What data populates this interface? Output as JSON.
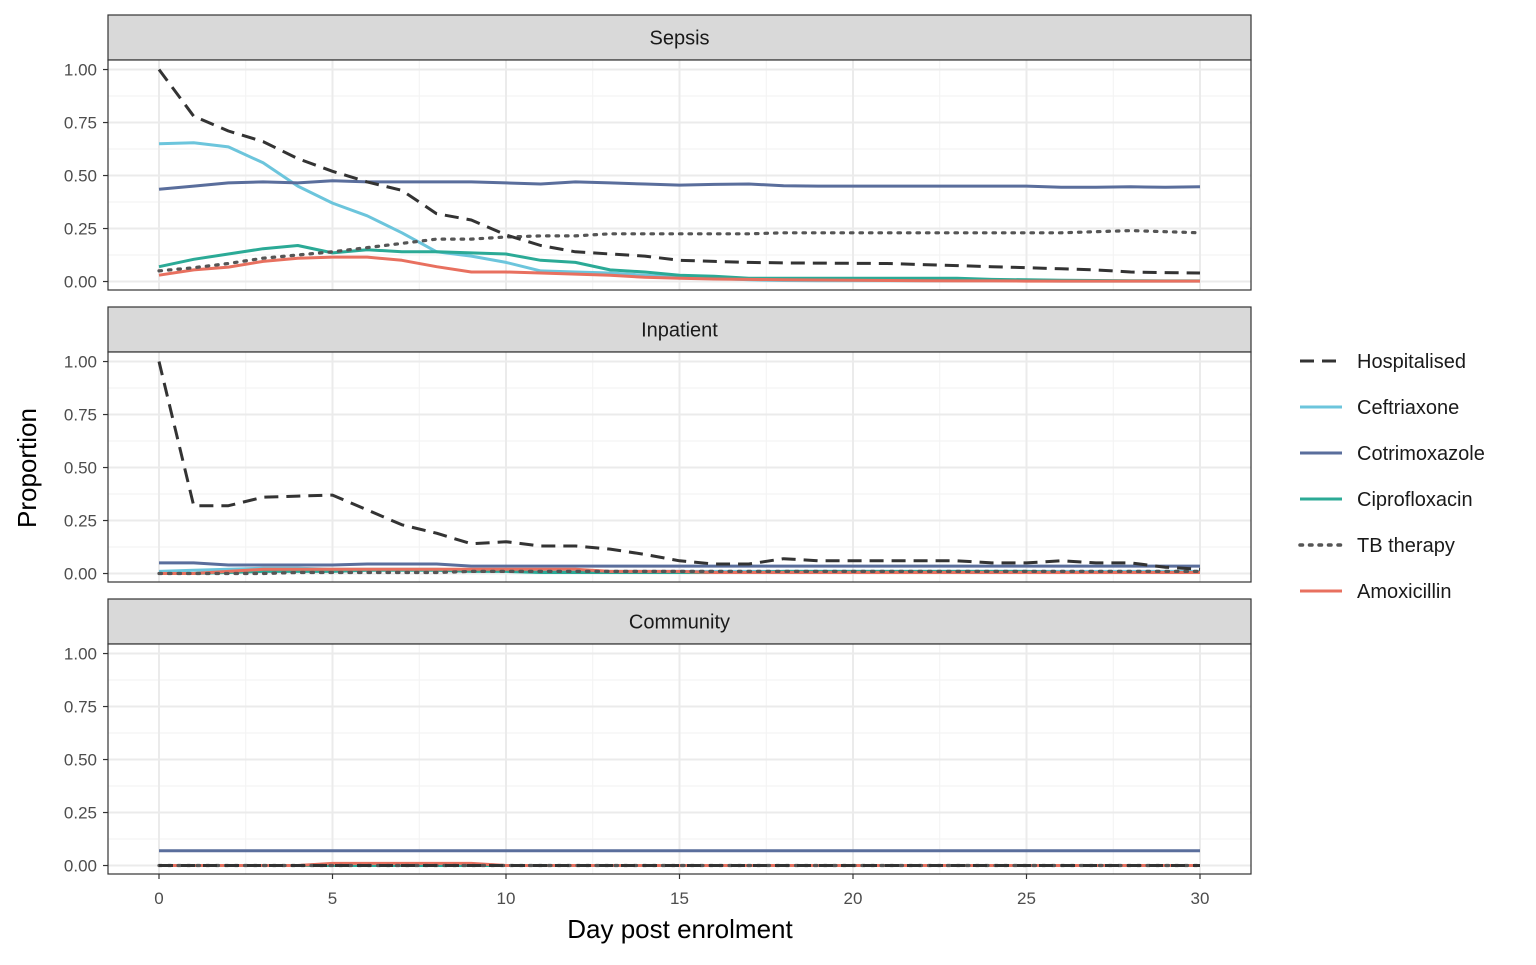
{
  "chart_data": {
    "type": "line",
    "xlabel": "Day post enrolment",
    "ylabel": "Proportion",
    "xlim": [
      0,
      30
    ],
    "ylim": [
      0,
      1
    ],
    "x_ticks": [
      0,
      5,
      10,
      15,
      20,
      25,
      30
    ],
    "x_tick_labels": [
      "0",
      "5",
      "10",
      "15",
      "20",
      "25",
      "30"
    ],
    "y_ticks": [
      0,
      0.25,
      0.5,
      0.75,
      1
    ],
    "y_tick_labels": [
      "0.00",
      "0.25",
      "0.50",
      "0.75",
      "1.00"
    ],
    "grid": true,
    "legend_position": "right",
    "series_styles": [
      {
        "name": "Hospitalised",
        "color": "#333333",
        "dash": "dashed"
      },
      {
        "name": "Ceftriaxone",
        "color": "#6CC5DC",
        "dash": "solid"
      },
      {
        "name": "Cotrimoxazole",
        "color": "#5A6E9C",
        "dash": "solid"
      },
      {
        "name": "Ciprofloxacin",
        "color": "#2BAA96",
        "dash": "solid"
      },
      {
        "name": "TB therapy",
        "color": "#555555",
        "dash": "dotted"
      },
      {
        "name": "Amoxicillin",
        "color": "#E8705F",
        "dash": "solid"
      }
    ],
    "panels": [
      {
        "title": "Sepsis",
        "x": [
          0,
          1,
          2,
          3,
          4,
          5,
          6,
          7,
          8,
          9,
          10,
          11,
          12,
          13,
          14,
          15,
          16,
          17,
          18,
          19,
          20,
          21,
          22,
          23,
          24,
          25,
          26,
          27,
          28,
          29,
          30
        ],
        "series": [
          {
            "name": "Hospitalised",
            "values": [
              1.0,
              0.78,
              0.71,
              0.66,
              0.58,
              0.52,
              0.47,
              0.43,
              0.32,
              0.29,
              0.22,
              0.17,
              0.14,
              0.13,
              0.12,
              0.1,
              0.095,
              0.09,
              0.088,
              0.087,
              0.086,
              0.085,
              0.08,
              0.075,
              0.07,
              0.065,
              0.06,
              0.055,
              0.045,
              0.042,
              0.04
            ]
          },
          {
            "name": "Ceftriaxone",
            "values": [
              0.65,
              0.655,
              0.635,
              0.56,
              0.45,
              0.37,
              0.31,
              0.23,
              0.14,
              0.12,
              0.09,
              0.05,
              0.045,
              0.04,
              0.03,
              0.02,
              0.015,
              0.008,
              0.005,
              0.004,
              0.004,
              0.004,
              0.003,
              0.003,
              0.003,
              0.003,
              0.002,
              0.002,
              0.002,
              0.002,
              0.002
            ]
          },
          {
            "name": "Cotrimoxazole",
            "values": [
              0.435,
              0.45,
              0.465,
              0.47,
              0.465,
              0.475,
              0.47,
              0.47,
              0.47,
              0.47,
              0.465,
              0.46,
              0.47,
              0.465,
              0.46,
              0.455,
              0.458,
              0.46,
              0.452,
              0.45,
              0.45,
              0.45,
              0.45,
              0.45,
              0.45,
              0.45,
              0.445,
              0.445,
              0.447,
              0.445,
              0.447
            ]
          },
          {
            "name": "Ciprofloxacin",
            "values": [
              0.07,
              0.105,
              0.13,
              0.155,
              0.17,
              0.135,
              0.15,
              0.14,
              0.14,
              0.135,
              0.13,
              0.1,
              0.09,
              0.055,
              0.045,
              0.03,
              0.025,
              0.015,
              0.015,
              0.015,
              0.015,
              0.015,
              0.015,
              0.015,
              0.01,
              0.008,
              0.006,
              0.005,
              0.004,
              0.003,
              0.003
            ]
          },
          {
            "name": "TB therapy",
            "values": [
              0.05,
              0.065,
              0.085,
              0.11,
              0.125,
              0.14,
              0.16,
              0.18,
              0.2,
              0.2,
              0.21,
              0.215,
              0.215,
              0.225,
              0.225,
              0.225,
              0.225,
              0.225,
              0.23,
              0.23,
              0.23,
              0.23,
              0.23,
              0.23,
              0.23,
              0.23,
              0.23,
              0.235,
              0.24,
              0.235,
              0.23
            ]
          },
          {
            "name": "Amoxicillin",
            "values": [
              0.03,
              0.055,
              0.068,
              0.095,
              0.11,
              0.115,
              0.115,
              0.1,
              0.07,
              0.045,
              0.045,
              0.04,
              0.035,
              0.03,
              0.02,
              0.015,
              0.012,
              0.01,
              0.008,
              0.007,
              0.006,
              0.005,
              0.004,
              0.003,
              0.003,
              0.002,
              0.002,
              0.002,
              0.002,
              0.002,
              0.002
            ]
          }
        ]
      },
      {
        "title": "Inpatient",
        "x": [
          0,
          1,
          2,
          3,
          4,
          5,
          6,
          7,
          8,
          9,
          10,
          11,
          12,
          13,
          14,
          15,
          16,
          17,
          18,
          19,
          20,
          21,
          22,
          23,
          24,
          25,
          26,
          27,
          28,
          29,
          30
        ],
        "series": [
          {
            "name": "Hospitalised",
            "values": [
              1.0,
              0.32,
              0.32,
              0.36,
              0.365,
              0.37,
              0.3,
              0.23,
              0.19,
              0.14,
              0.15,
              0.13,
              0.13,
              0.115,
              0.09,
              0.06,
              0.045,
              0.045,
              0.07,
              0.06,
              0.06,
              0.06,
              0.06,
              0.06,
              0.05,
              0.05,
              0.06,
              0.05,
              0.05,
              0.03,
              0.02
            ]
          },
          {
            "name": "Ceftriaxone",
            "values": [
              0.01,
              0.015,
              0.02,
              0.025,
              0.025,
              0.02,
              0.02,
              0.02,
              0.02,
              0.015,
              0.015,
              0.01,
              0.01,
              0.01,
              0.01,
              0.01,
              0.01,
              0.01,
              0.01,
              0.01,
              0.01,
              0.01,
              0.01,
              0.01,
              0.01,
              0.01,
              0.01,
              0.01,
              0.01,
              0.01,
              0.01
            ]
          },
          {
            "name": "Cotrimoxazole",
            "values": [
              0.05,
              0.05,
              0.04,
              0.04,
              0.04,
              0.04,
              0.045,
              0.045,
              0.045,
              0.035,
              0.035,
              0.035,
              0.035,
              0.035,
              0.035,
              0.035,
              0.035,
              0.035,
              0.035,
              0.035,
              0.035,
              0.035,
              0.035,
              0.035,
              0.035,
              0.035,
              0.035,
              0.035,
              0.035,
              0.035,
              0.035
            ]
          },
          {
            "name": "Ciprofloxacin",
            "values": [
              0.0,
              0.0,
              0.005,
              0.01,
              0.01,
              0.01,
              0.015,
              0.015,
              0.015,
              0.01,
              0.01,
              0.005,
              0.005,
              0.005,
              0.005,
              0.005,
              0.005,
              0.005,
              0.01,
              0.01,
              0.01,
              0.01,
              0.01,
              0.01,
              0.01,
              0.01,
              0.005,
              0.005,
              0.005,
              0.005,
              0.005
            ]
          },
          {
            "name": "TB therapy",
            "values": [
              0.0,
              0.0,
              0.0,
              0.0,
              0.005,
              0.005,
              0.005,
              0.005,
              0.005,
              0.01,
              0.01,
              0.01,
              0.01,
              0.01,
              0.01,
              0.01,
              0.01,
              0.01,
              0.01,
              0.01,
              0.01,
              0.01,
              0.01,
              0.01,
              0.01,
              0.01,
              0.01,
              0.01,
              0.01,
              0.01,
              0.01
            ]
          },
          {
            "name": "Amoxicillin",
            "values": [
              0.0,
              0.0,
              0.01,
              0.02,
              0.02,
              0.02,
              0.02,
              0.02,
              0.02,
              0.02,
              0.02,
              0.02,
              0.02,
              0.01,
              0.01,
              0.01,
              0.005,
              0.005,
              0.005,
              0.005,
              0.005,
              0.005,
              0.005,
              0.005,
              0.005,
              0.005,
              0.005,
              0.005,
              0.005,
              0.005,
              0.005
            ]
          }
        ]
      },
      {
        "title": "Community",
        "x": [
          0,
          1,
          2,
          3,
          4,
          5,
          6,
          7,
          8,
          9,
          10,
          11,
          12,
          13,
          14,
          15,
          16,
          17,
          18,
          19,
          20,
          21,
          22,
          23,
          24,
          25,
          26,
          27,
          28,
          29,
          30
        ],
        "series": [
          {
            "name": "Hospitalised",
            "values": [
              0,
              0,
              0,
              0,
              0,
              0,
              0,
              0,
              0,
              0,
              0,
              0,
              0,
              0,
              0,
              0,
              0,
              0,
              0,
              0,
              0,
              0,
              0,
              0,
              0,
              0,
              0,
              0,
              0,
              0,
              0
            ]
          },
          {
            "name": "Ceftriaxone",
            "values": [
              0,
              0,
              0,
              0,
              0,
              0,
              0,
              0,
              0,
              0,
              0,
              0,
              0,
              0,
              0,
              0,
              0,
              0,
              0,
              0,
              0,
              0,
              0,
              0,
              0,
              0,
              0,
              0,
              0,
              0,
              0
            ]
          },
          {
            "name": "Cotrimoxazole",
            "values": [
              0.07,
              0.07,
              0.07,
              0.07,
              0.07,
              0.07,
              0.07,
              0.07,
              0.07,
              0.07,
              0.07,
              0.07,
              0.07,
              0.07,
              0.07,
              0.07,
              0.07,
              0.07,
              0.07,
              0.07,
              0.07,
              0.07,
              0.07,
              0.07,
              0.07,
              0.07,
              0.07,
              0.07,
              0.07,
              0.07,
              0.07
            ]
          },
          {
            "name": "Ciprofloxacin",
            "values": [
              0,
              0,
              0,
              0,
              0,
              0,
              0,
              0,
              0,
              0,
              0,
              0,
              0,
              0,
              0,
              0,
              0,
              0,
              0,
              0,
              0,
              0,
              0,
              0,
              0,
              0,
              0,
              0,
              0,
              0,
              0
            ]
          },
          {
            "name": "TB therapy",
            "values": [
              0,
              0,
              0,
              0,
              0,
              0,
              0,
              0,
              0,
              0,
              0,
              0,
              0,
              0,
              0,
              0,
              0,
              0,
              0,
              0,
              0,
              0,
              0,
              0,
              0,
              0,
              0,
              0,
              0,
              0,
              0
            ]
          },
          {
            "name": "Amoxicillin",
            "values": [
              0,
              0,
              0,
              0,
              0,
              0.01,
              0.01,
              0.01,
              0.01,
              0.01,
              0,
              0,
              0,
              0,
              0,
              0,
              0,
              0,
              0,
              0,
              0,
              0,
              0,
              0,
              0,
              0,
              0,
              0,
              0,
              0,
              0
            ]
          }
        ]
      }
    ]
  }
}
